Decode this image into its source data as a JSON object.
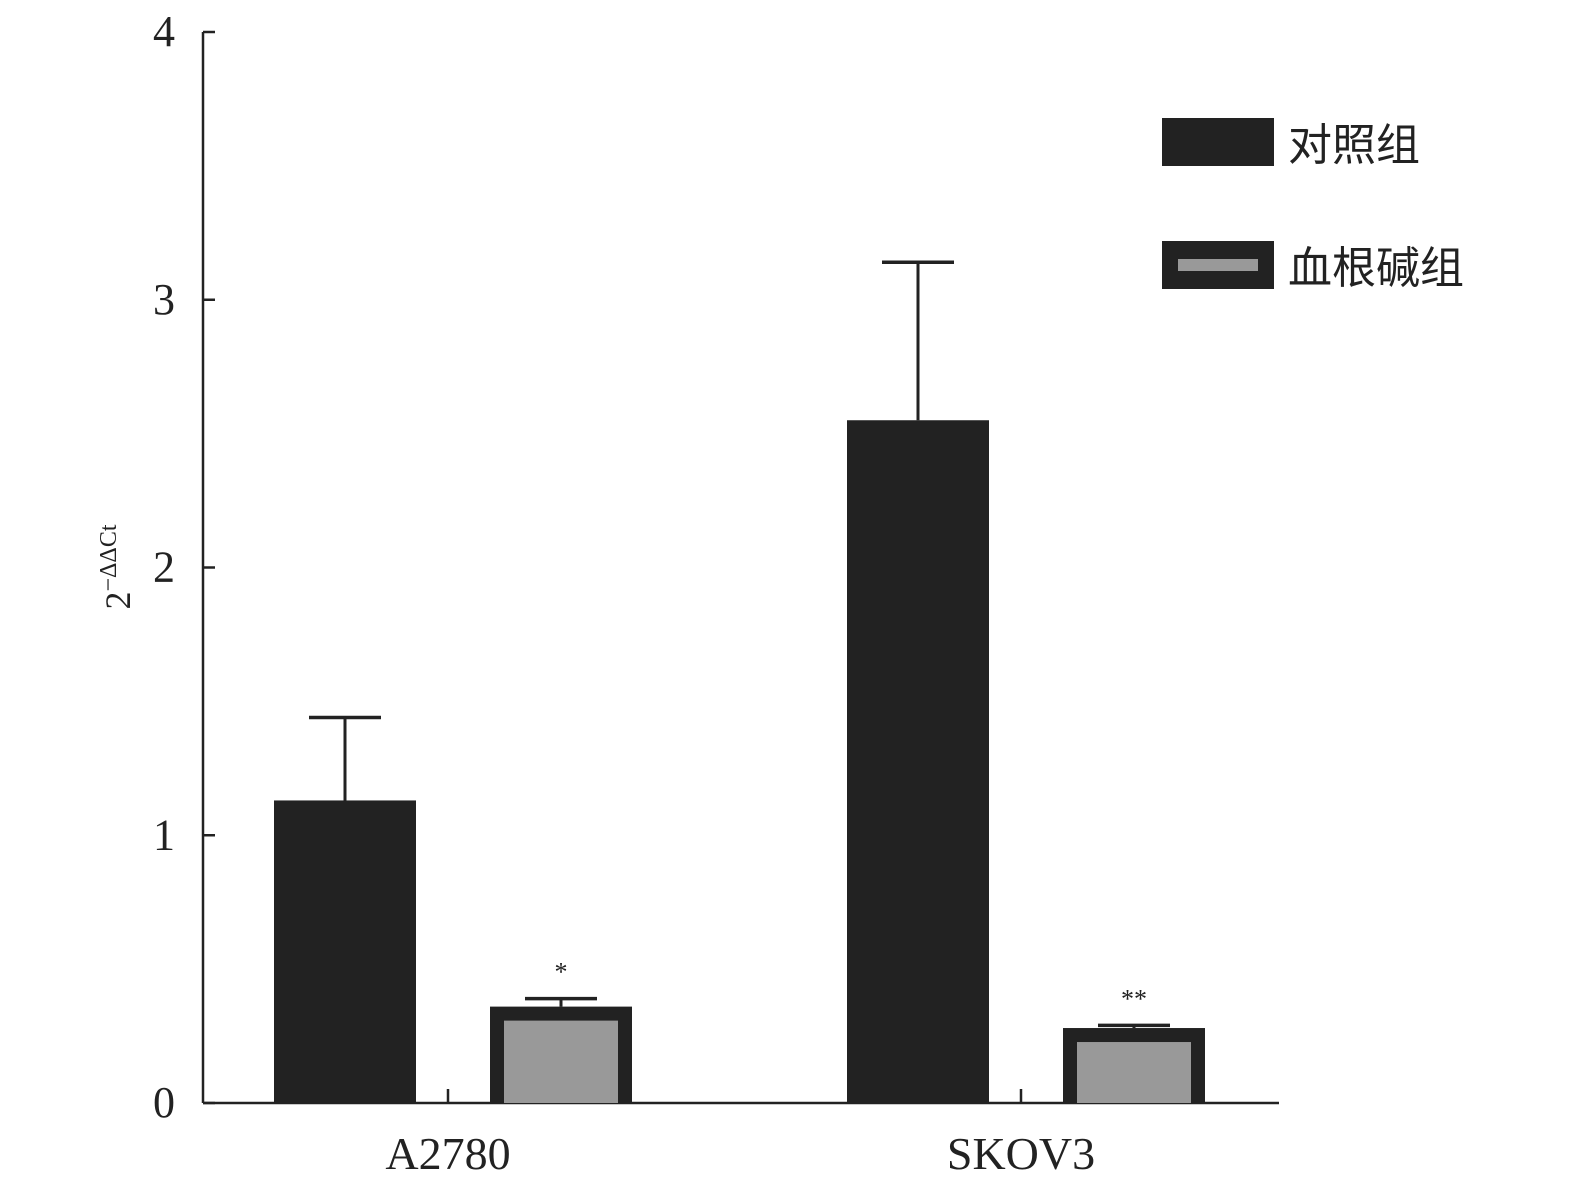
{
  "chart_data": {
    "type": "bar",
    "title": "",
    "xlabel": "",
    "ylabel": {
      "base": "2",
      "superscript": "−ΔΔCt"
    },
    "ylim": [
      0,
      4
    ],
    "yticks": [
      "0",
      "1",
      "2",
      "3",
      "4"
    ],
    "categories": [
      "A2780",
      "SKOV3"
    ],
    "series": [
      {
        "name": "对照组",
        "values": [
          1.13,
          2.55
        ],
        "errors": [
          0.31,
          0.59
        ],
        "significance": [
          "",
          ""
        ],
        "color": "#222222",
        "inner_color": "#222222"
      },
      {
        "name": "血根碱组",
        "values": [
          0.36,
          0.28
        ],
        "errors": [
          0.03,
          0.01
        ],
        "significance": [
          "*",
          "**"
        ],
        "color": "#222222",
        "inner_color": "#999999"
      }
    ],
    "legend": {
      "position": "top-right"
    },
    "grid": false
  }
}
